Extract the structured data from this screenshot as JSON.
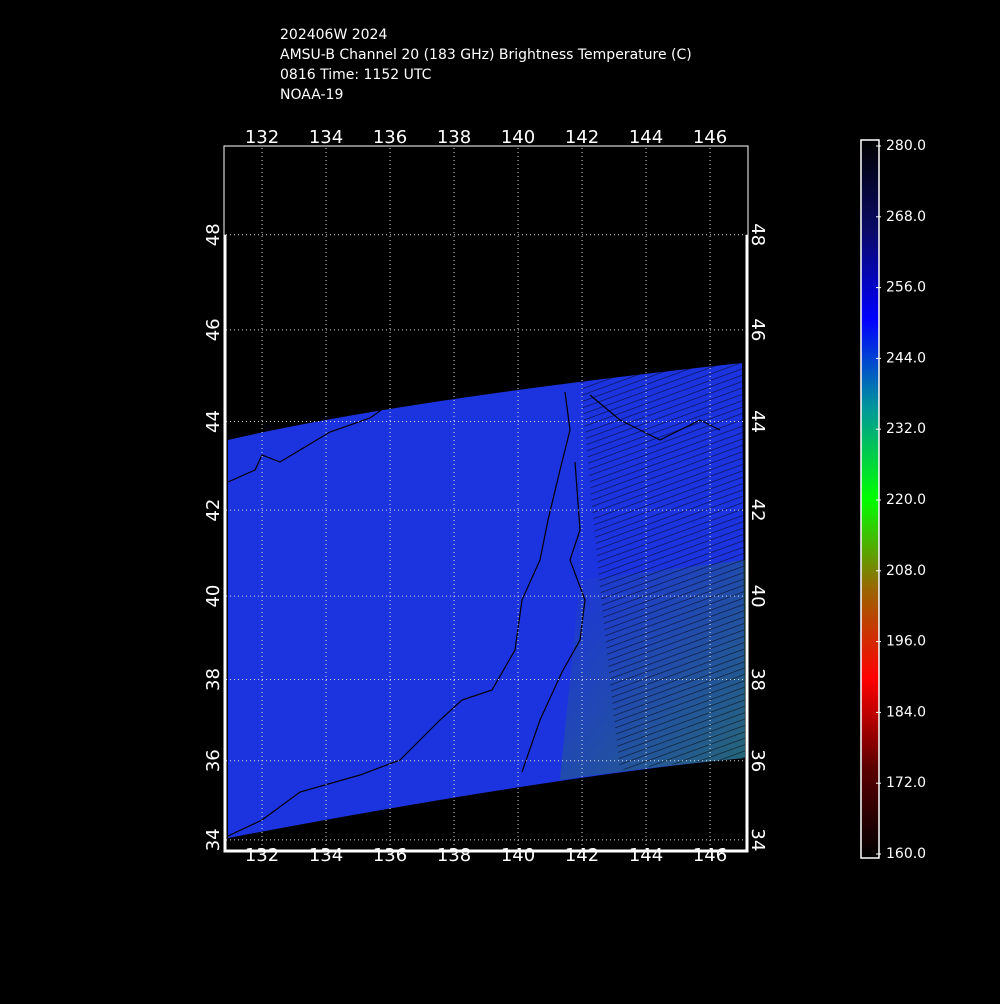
{
  "title_lines": [
    "202406W 2024",
    "AMSU-B Channel 20 (183 GHz) Brightness Temperature (C)",
    "0816 Time: 1152 UTC",
    "NOAA-19"
  ],
  "map": {
    "projection": "mercator",
    "lonlim": [
      130.875,
      147.125
    ],
    "latlim": [
      33.74,
      49.76
    ],
    "lonticks": [
      132,
      134,
      136,
      138,
      140,
      142,
      144,
      146
    ],
    "latticks": [
      34,
      36,
      38,
      40,
      42,
      44,
      46,
      48
    ],
    "grid": true
  },
  "colorbar": {
    "lim": [
      160,
      280
    ],
    "ticks": [
      {
        "value": 160,
        "label": "160.0"
      },
      {
        "value": 172,
        "label": "172.0"
      },
      {
        "value": 184,
        "label": "184.0"
      },
      {
        "value": 196,
        "label": "196.0"
      },
      {
        "value": 208,
        "label": "208.0"
      },
      {
        "value": 220,
        "label": "220.0"
      },
      {
        "value": 232,
        "label": "232.0"
      },
      {
        "value": 244,
        "label": "244.0"
      },
      {
        "value": 256,
        "label": "256.0"
      },
      {
        "value": 268,
        "label": "268.0"
      },
      {
        "value": 280,
        "label": "280.0"
      }
    ],
    "colors": [
      "#000000",
      "#5a0000",
      "#ff0000",
      "#996600",
      "#00ff00",
      "#009999",
      "#0000ff",
      "#0a0a66",
      "#000000"
    ]
  }
}
